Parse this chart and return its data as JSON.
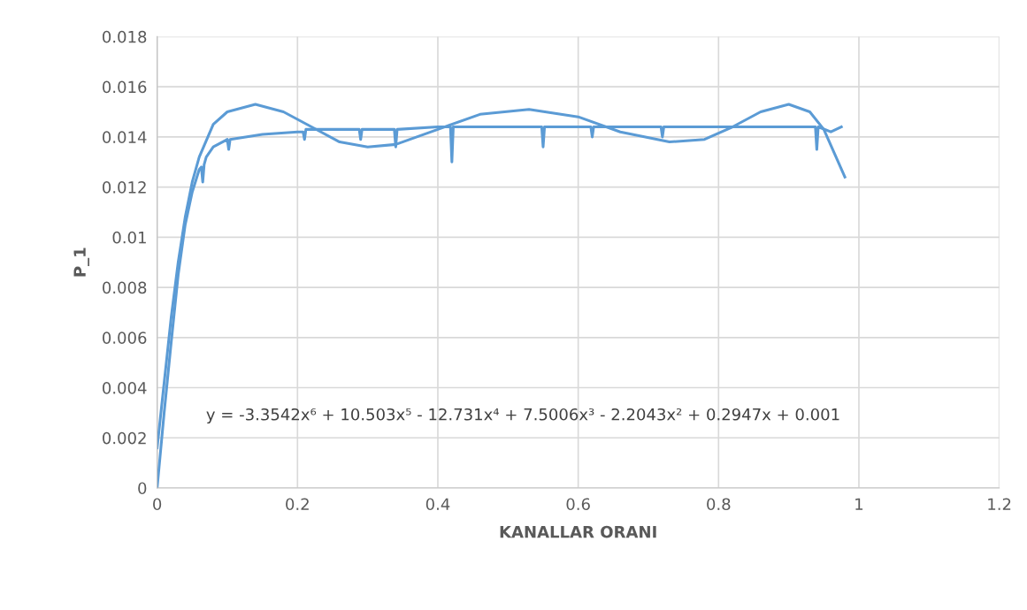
{
  "chart_data": {
    "type": "line",
    "xlabel": "KANALLAR ORANI",
    "ylabel": "P_1",
    "xlim": [
      0,
      1.2
    ],
    "xticks": [
      0,
      0.2,
      0.4,
      0.6,
      0.8,
      1,
      1.2
    ],
    "ylim": [
      0,
      0.018
    ],
    "yticks": [
      0,
      0.002,
      0.004,
      0.006,
      0.008,
      0.01,
      0.012,
      0.014,
      0.016,
      0.018
    ],
    "grid": true,
    "legend": false,
    "marker": "none",
    "line_style": "solid",
    "series": [
      {
        "color": "#5b9bd5",
        "x": [
          0,
          0.01,
          0.02,
          0.03,
          0.04,
          0.05,
          0.06,
          0.063,
          0.065,
          0.067,
          0.07,
          0.08,
          0.1,
          0.102,
          0.104,
          0.15,
          0.2,
          0.208,
          0.21,
          0.212,
          0.25,
          0.288,
          0.29,
          0.292,
          0.338,
          0.34,
          0.342,
          0.4,
          0.418,
          0.42,
          0.422,
          0.5,
          0.548,
          0.55,
          0.552,
          0.618,
          0.62,
          0.622,
          0.718,
          0.72,
          0.722,
          0.8,
          0.9,
          0.938,
          0.94,
          0.942,
          0.96,
          0.975
        ],
        "values": [
          0,
          0.003,
          0.0058,
          0.0085,
          0.0105,
          0.0118,
          0.0127,
          0.0128,
          0.0122,
          0.0129,
          0.0132,
          0.0136,
          0.0139,
          0.0135,
          0.0139,
          0.0141,
          0.0142,
          0.0142,
          0.0139,
          0.0143,
          0.0143,
          0.0143,
          0.0139,
          0.0143,
          0.0143,
          0.0136,
          0.0143,
          0.0144,
          0.0144,
          0.013,
          0.0144,
          0.0144,
          0.0144,
          0.0136,
          0.0144,
          0.0144,
          0.014,
          0.0144,
          0.0144,
          0.014,
          0.0144,
          0.0144,
          0.0144,
          0.0144,
          0.0135,
          0.0144,
          0.0142,
          0.0144
        ]
      },
      {
        "color": "#5b9bd5",
        "x": [
          0,
          0.01,
          0.02,
          0.03,
          0.04,
          0.05,
          0.06,
          0.08,
          0.1,
          0.14,
          0.18,
          0.22,
          0.26,
          0.3,
          0.34,
          0.4,
          0.46,
          0.53,
          0.6,
          0.66,
          0.73,
          0.78,
          0.82,
          0.86,
          0.9,
          0.93,
          0.95,
          0.98
        ],
        "values": [
          0.0016,
          0.0042,
          0.0068,
          0.009,
          0.0108,
          0.0122,
          0.0132,
          0.0145,
          0.015,
          0.0153,
          0.015,
          0.0144,
          0.0138,
          0.0136,
          0.0137,
          0.0143,
          0.0149,
          0.0151,
          0.0148,
          0.0142,
          0.0138,
          0.0139,
          0.0144,
          0.015,
          0.0153,
          0.015,
          0.0143,
          0.0124
        ]
      }
    ],
    "annotations": [
      "y = -3.3542x⁶ + 10.503x⁵ - 12.731x⁴ + 7.5006x³ - 2.2043x² + 0.2947x + 0.001"
    ]
  }
}
